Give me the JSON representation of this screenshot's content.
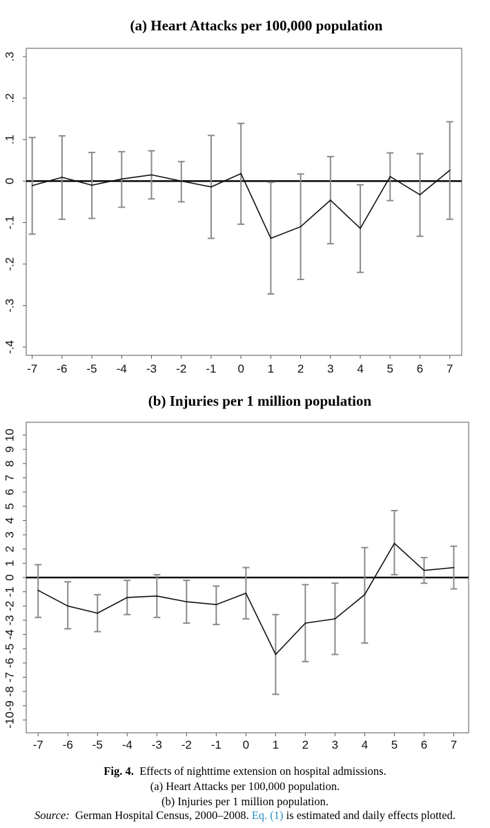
{
  "chart_data": [
    {
      "type": "line",
      "panel": "a",
      "title": "(a) Heart Attacks per 100,000 population",
      "x": [
        -7,
        -6,
        -5,
        -4,
        -3,
        -2,
        -1,
        0,
        1,
        2,
        3,
        4,
        5,
        6,
        7
      ],
      "values": [
        -0.011,
        0.009,
        -0.01,
        0.005,
        0.015,
        0.0,
        -0.014,
        0.018,
        -0.138,
        -0.11,
        -0.046,
        -0.114,
        0.011,
        -0.033,
        0.026
      ],
      "ci_low": [
        -0.128,
        -0.092,
        -0.09,
        -0.063,
        -0.043,
        -0.05,
        -0.138,
        -0.104,
        -0.272,
        -0.237,
        -0.151,
        -0.22,
        -0.047,
        -0.133,
        -0.092
      ],
      "ci_high": [
        0.105,
        0.109,
        0.069,
        0.071,
        0.073,
        0.047,
        0.11,
        0.139,
        -0.003,
        0.017,
        0.059,
        -0.009,
        0.068,
        0.066,
        0.143
      ],
      "xlabel": "",
      "ylabel": "",
      "xlim": [
        -7.2,
        7.4
      ],
      "ylim": [
        -0.42,
        0.32
      ],
      "yticks": [
        0.3,
        0.2,
        0.1,
        0,
        -0.1,
        -0.2,
        -0.3,
        -0.4
      ],
      "ytick_labels": [
        ".3",
        ".2",
        ".1",
        "0",
        "-.1",
        "-.2",
        "-.3",
        "-.4"
      ],
      "xtick_labels": [
        "-7",
        "-6",
        "-5",
        "-4",
        "-3",
        "-2",
        "-1",
        "0",
        "1",
        "2",
        "3",
        "4",
        "5",
        "6",
        "7"
      ],
      "reference_line": 0,
      "grid": false
    },
    {
      "type": "line",
      "panel": "b",
      "title": "(b) Injuries per 1 million population",
      "x": [
        -7,
        -6,
        -5,
        -4,
        -3,
        -2,
        -1,
        0,
        1,
        2,
        3,
        4,
        5,
        6,
        7
      ],
      "values": [
        -0.9,
        -2.0,
        -2.5,
        -1.4,
        -1.3,
        -1.7,
        -1.9,
        -1.1,
        -5.4,
        -3.2,
        -2.9,
        -1.2,
        2.4,
        0.5,
        0.7
      ],
      "ci_low": [
        -2.8,
        -3.6,
        -3.8,
        -2.6,
        -2.8,
        -3.2,
        -3.3,
        -2.9,
        -8.2,
        -5.9,
        -5.4,
        -4.6,
        0.2,
        -0.4,
        -0.8
      ],
      "ci_high": [
        0.9,
        -0.3,
        -1.2,
        -0.2,
        0.2,
        -0.2,
        -0.6,
        0.7,
        -2.6,
        -0.5,
        -0.4,
        2.1,
        4.7,
        1.4,
        2.2
      ],
      "xlabel": "",
      "ylabel": "",
      "xlim": [
        -7.4,
        7.5
      ],
      "ylim": [
        -10.9,
        10.9
      ],
      "yticks": [
        10,
        9,
        8,
        7,
        6,
        5,
        4,
        3,
        2,
        1,
        0,
        -1,
        -2,
        -3,
        -4,
        -5,
        -6,
        -7,
        -8,
        -9,
        -10
      ],
      "ytick_labels": [
        "10",
        "9",
        "8",
        "7",
        "6",
        "5",
        "4",
        "3",
        "2",
        "1",
        "0",
        "-1",
        "-2",
        "-3",
        "-4",
        "-5",
        "-6",
        "-7",
        "-8",
        "-9",
        "-10"
      ],
      "xtick_labels": [
        "-7",
        "-6",
        "-5",
        "-4",
        "-3",
        "-2",
        "-1",
        "0",
        "1",
        "2",
        "3",
        "4",
        "5",
        "6",
        "7"
      ],
      "reference_line": 0,
      "grid": false
    }
  ],
  "caption": {
    "fig_label": "Fig. 4.",
    "title": "Effects of nighttime extension on hospital admissions.",
    "line_a": "(a) Heart Attacks per 100,000 population.",
    "line_b": "(b) Injuries per 1 million population.",
    "source_label": "Source:",
    "source_text_1": "German Hospital Census, 2000–2008.",
    "source_link": "Eq. (1)",
    "source_text_2": "is estimated and daily effects plotted."
  },
  "colors": {
    "line": "#111111",
    "error_bar": "#8a8a8a",
    "reference_line": "#111111",
    "axis": "#555555",
    "link": "#2a8fc1"
  }
}
